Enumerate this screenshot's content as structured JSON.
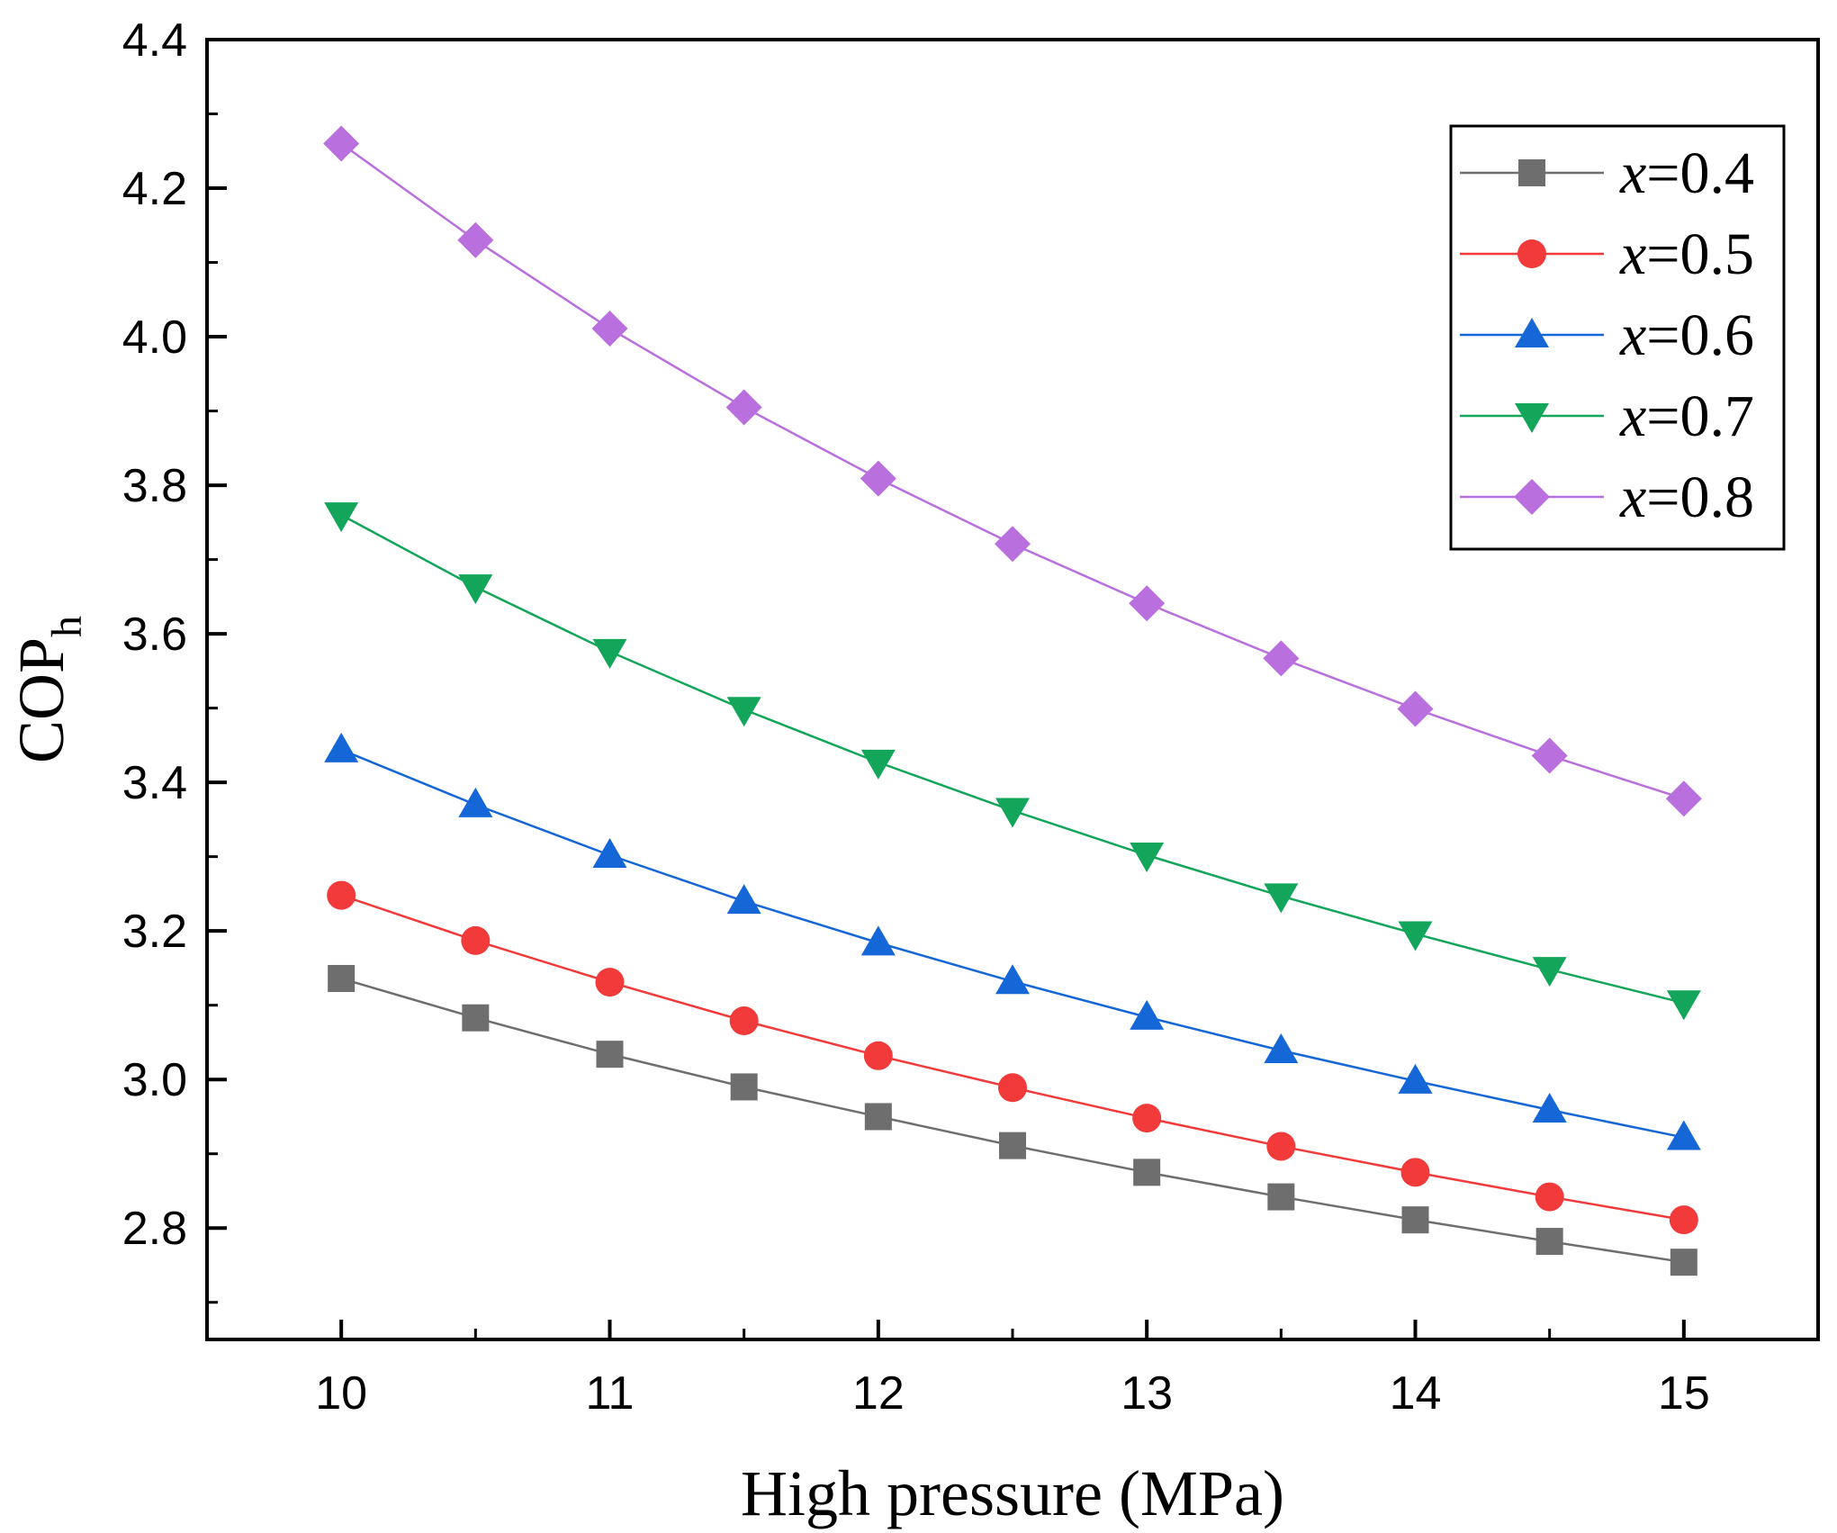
{
  "chart_data": {
    "type": "line",
    "title": "",
    "xlabel": "High pressure (MPa)",
    "ylabel_main": "COP",
    "ylabel_sub": "h",
    "xlim": [
      9.5,
      15.5
    ],
    "ylim": [
      2.65,
      4.4
    ],
    "x_ticks": [
      "10",
      "11",
      "12",
      "13",
      "14",
      "15"
    ],
    "y_ticks": [
      "2.8",
      "3.0",
      "3.2",
      "3.4",
      "3.6",
      "3.8",
      "4.0",
      "4.2",
      "4.4"
    ],
    "grid": false,
    "legend_position": "top-right",
    "x": [
      10,
      10.5,
      11,
      11.5,
      12,
      12.5,
      13,
      13.5,
      14,
      14.5,
      15
    ],
    "series": [
      {
        "legend_var": "x",
        "legend_rest": "=0.4",
        "color": "#6e6e6e",
        "marker": "square",
        "values": [
          3.136,
          3.083,
          3.034,
          2.99,
          2.95,
          2.911,
          2.875,
          2.842,
          2.811,
          2.782,
          2.754
        ]
      },
      {
        "legend_var": "x",
        "legend_rest": "=0.5",
        "color": "#f23a3a",
        "marker": "circle",
        "values": [
          3.248,
          3.187,
          3.131,
          3.079,
          3.032,
          2.989,
          2.948,
          2.91,
          2.875,
          2.842,
          2.811
        ]
      },
      {
        "legend_var": "x",
        "legend_rest": "=0.6",
        "color": "#1567d8",
        "marker": "triangle-up",
        "values": [
          3.444,
          3.37,
          3.302,
          3.24,
          3.184,
          3.132,
          3.084,
          3.039,
          2.998,
          2.959,
          2.922
        ]
      },
      {
        "legend_var": "x",
        "legend_rest": "=0.7",
        "color": "#13a65a",
        "marker": "triangle-down",
        "values": [
          3.76,
          3.663,
          3.576,
          3.498,
          3.427,
          3.362,
          3.302,
          3.247,
          3.196,
          3.148,
          3.103
        ]
      },
      {
        "legend_var": "x",
        "legend_rest": "=0.8",
        "color": "#b96fdd",
        "marker": "diamond",
        "values": [
          4.26,
          4.13,
          4.011,
          3.905,
          3.809,
          3.721,
          3.641,
          3.567,
          3.499,
          3.436,
          3.378
        ]
      }
    ]
  }
}
